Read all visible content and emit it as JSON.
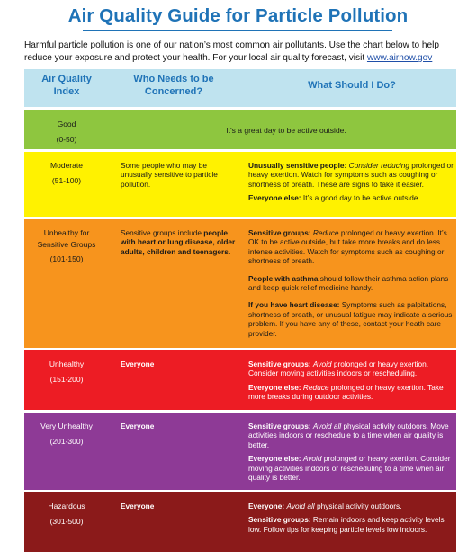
{
  "title": "Air Quality Guide for Particle Pollution",
  "intro": {
    "text": "Harmful particle pollution is one of our nation’s most common air pollutants. Use the chart below to help reduce your exposure and protect your health. For your local air quality forecast, visit ",
    "link": "www.airnow.gov"
  },
  "headers": {
    "col1": "Air Quality Index",
    "col2": "Who Needs to be Concerned?",
    "col3": "What Should I Do?"
  },
  "rows": [
    {
      "level": "Good",
      "range": "(0-50)",
      "full_message": "It’s a great day to be active outside.",
      "color": "#8ec63f"
    },
    {
      "level": "Moderate",
      "range": "(51-100)",
      "who": "Some people who may be unusually sensitive to particle pollution.",
      "advice": [
        {
          "lead": "Unusually sensitive people: ",
          "italic": "Consider reducing",
          "rest": " prolonged or heavy exertion. Watch for symptoms such as coughing or shortness of breath. These are signs to take it easier."
        },
        {
          "lead": "Everyone else: ",
          "italic": "",
          "rest": "It’s a good day to be active outside."
        }
      ],
      "color": "#fff200"
    },
    {
      "level": "Unhealthy for Sensitive Groups",
      "range": "(101-150)",
      "who_plain": "Sensitive groups include ",
      "who_bold": "people with heart or lung disease, older adults, children and teenagers.",
      "advice": [
        {
          "lead": "Sensitive groups: ",
          "italic": "Reduce",
          "rest": " prolonged or heavy exertion.  It’s OK to be active outside, but take more breaks and do less intense activities.  Watch for symptoms such as coughing or shortness of breath."
        },
        {
          "lead": "People with asthma",
          "italic": "",
          "rest": " should follow their asthma action plans and keep quick relief medicine handy."
        },
        {
          "lead": "If you have heart disease: ",
          "italic": "",
          "rest": "Symptoms such as palpitations, shortness of breath, or unusual fatigue may indicate a serious problem. If you have any of these, contact your heath care provider."
        }
      ],
      "color": "#f7941d"
    },
    {
      "level": "Unhealthy",
      "range": "(151-200)",
      "who_bold": "Everyone",
      "advice": [
        {
          "lead": "Sensitive groups: ",
          "italic": "Avoid",
          "rest": " prolonged or heavy exertion. Consider moving activities indoors or rescheduling."
        },
        {
          "lead": "Everyone else: ",
          "italic": "Reduce",
          "rest": " prolonged or heavy exertion. Take more breaks during outdoor activities."
        }
      ],
      "color": "#ed1c24"
    },
    {
      "level": "Very Unhealthy",
      "range": "(201-300)",
      "who_bold": "Everyone",
      "advice": [
        {
          "lead": "Sensitive groups: ",
          "italic": "Avoid all",
          "rest": " physical activity outdoors. Move activities indoors or reschedule to a time when air quality is better."
        },
        {
          "lead": "Everyone else: ",
          "italic": "Avoid",
          "rest": " prolonged or heavy exertion. Consider moving activities indoors or rescheduling to a time when air quality is better."
        }
      ],
      "color": "#8e3a96"
    },
    {
      "level": "Hazardous",
      "range": "(301-500)",
      "who_bold": "Everyone",
      "advice": [
        {
          "lead": "Everyone: ",
          "italic": "Avoid all",
          "rest": " physical activity outdoors."
        },
        {
          "lead": "Sensitive groups: ",
          "italic": "",
          "rest": "Remain indoors and keep activity levels low. Follow tips for keeping particle levels low indoors."
        }
      ],
      "color": "#8b1a1a"
    }
  ]
}
